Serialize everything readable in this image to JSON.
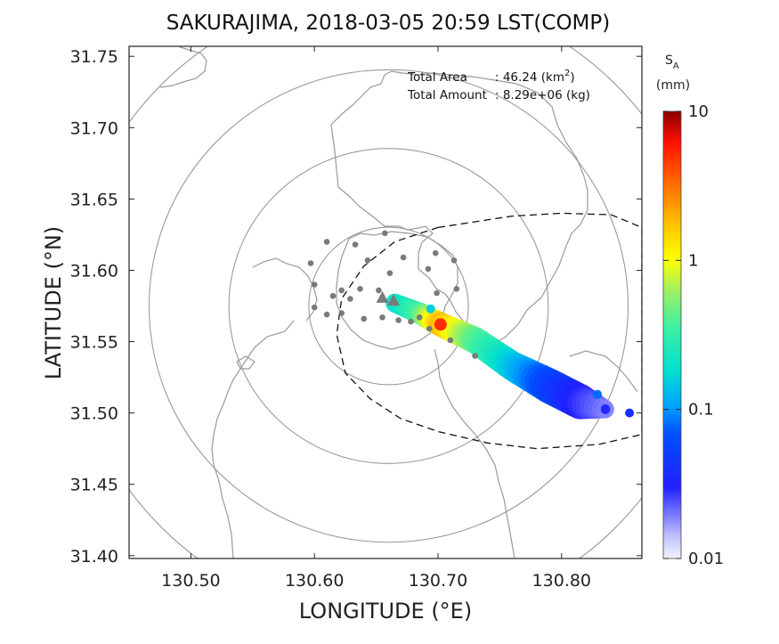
{
  "figure": {
    "title": "SAKURAJIMA, 2018-03-05 20:59 LST(COMP)",
    "xlabel": "LONGITUDE (°E)",
    "ylabel": "LATITUDE (°N)",
    "summary": {
      "area_label": "Total Area",
      "area_value": ": 46.24 (km",
      "area_unit_sup": "2",
      "area_close": ")",
      "amount_label": "Total Amount",
      "amount_value": ": 8.29e+06 (kg)"
    },
    "colorbar": {
      "var": "S",
      "var_sub": "A",
      "unit": "(mm)",
      "scale": "log",
      "range": [
        0.01,
        10
      ],
      "ticks": [
        "10",
        "1",
        "0.1",
        "0.01"
      ],
      "tick_values": [
        10,
        1,
        0.1,
        0.01
      ]
    }
  },
  "chart_data": {
    "type": "heatmap",
    "projection": "lon-lat",
    "xlim": [
      130.45,
      130.865
    ],
    "ylim": [
      31.398,
      31.757
    ],
    "x_ticks": [
      130.5,
      130.6,
      130.7,
      130.8
    ],
    "x_tick_labels": [
      "130.50",
      "130.60",
      "130.70",
      "130.80"
    ],
    "y_ticks": [
      31.4,
      31.45,
      31.5,
      31.55,
      31.6,
      31.65,
      31.7,
      31.75
    ],
    "y_tick_labels": [
      "31.40",
      "31.45",
      "31.50",
      "31.55",
      "31.60",
      "31.65",
      "31.70",
      "31.75"
    ],
    "grid": false,
    "radar_center": [
      130.66,
      31.575
    ],
    "range_rings": [
      {
        "rx": 0.0646,
        "ry": 0.0552
      },
      {
        "rx": 0.1292,
        "ry": 0.1104
      },
      {
        "rx": 0.1938,
        "ry": 0.1656
      },
      {
        "rx": 0.2584,
        "ry": 0.2208
      }
    ],
    "volcano_markers": [
      [
        130.655,
        31.581
      ],
      [
        130.664,
        31.579
      ]
    ],
    "stations": [
      [
        130.61,
        31.62
      ],
      [
        130.633,
        31.618
      ],
      [
        130.657,
        31.626
      ],
      [
        130.672,
        31.609
      ],
      [
        130.692,
        31.601
      ],
      [
        130.698,
        31.612
      ],
      [
        130.713,
        31.607
      ],
      [
        130.597,
        31.605
      ],
      [
        130.643,
        31.607
      ],
      [
        130.661,
        31.598
      ],
      [
        130.6,
        31.59
      ],
      [
        130.622,
        31.586
      ],
      [
        130.637,
        31.587
      ],
      [
        130.652,
        31.586
      ],
      [
        130.615,
        31.582
      ],
      [
        130.629,
        31.58
      ],
      [
        130.6,
        31.574
      ],
      [
        130.61,
        31.569
      ],
      [
        130.622,
        31.57
      ],
      [
        130.64,
        31.566
      ],
      [
        130.655,
        31.567
      ],
      [
        130.668,
        31.565
      ],
      [
        130.678,
        31.564
      ],
      [
        130.685,
        31.567
      ],
      [
        130.693,
        31.559
      ],
      [
        130.71,
        31.551
      ],
      [
        130.73,
        31.54
      ],
      [
        130.715,
        31.587
      ],
      [
        130.699,
        31.584
      ]
    ],
    "dashed_contour": [
      [
        130.7,
        31.63
      ],
      [
        130.76,
        31.638
      ],
      [
        130.8,
        31.64
      ],
      [
        130.84,
        31.639
      ],
      [
        130.865,
        31.63
      ],
      [
        130.865,
        31.485
      ],
      [
        130.83,
        31.478
      ],
      [
        130.78,
        31.475
      ],
      [
        130.74,
        31.479
      ],
      [
        130.7,
        31.487
      ],
      [
        130.67,
        31.496
      ],
      [
        130.645,
        31.51
      ],
      [
        130.625,
        31.528
      ],
      [
        130.618,
        31.555
      ],
      [
        130.622,
        31.58
      ],
      [
        130.64,
        31.603
      ],
      [
        130.665,
        31.62
      ],
      [
        130.7,
        31.63
      ]
    ],
    "plume_axis": [
      {
        "lon": 130.665,
        "lat": 31.577,
        "half_width": 0.007,
        "value": 0.3
      },
      {
        "lon": 130.685,
        "lat": 31.57,
        "half_width": 0.008,
        "value": 0.6
      },
      {
        "lon": 130.702,
        "lat": 31.562,
        "half_width": 0.009,
        "value": 3.0
      },
      {
        "lon": 130.73,
        "lat": 31.551,
        "half_width": 0.01,
        "value": 0.7
      },
      {
        "lon": 130.76,
        "lat": 31.533,
        "half_width": 0.011,
        "value": 0.25
      },
      {
        "lon": 130.79,
        "lat": 31.519,
        "half_width": 0.013,
        "value": 0.1
      },
      {
        "lon": 130.815,
        "lat": 31.508,
        "half_width": 0.013,
        "value": 0.05
      },
      {
        "lon": 130.838,
        "lat": 31.502,
        "half_width": 0.006,
        "value": 0.03
      }
    ],
    "plume_spots": [
      {
        "lon": 130.702,
        "lat": 31.562,
        "value": 5.0
      },
      {
        "lon": 130.694,
        "lat": 31.573,
        "value": 0.15
      },
      {
        "lon": 130.829,
        "lat": 31.513,
        "value": 0.08
      },
      {
        "lon": 130.855,
        "lat": 31.5,
        "value": 0.04
      }
    ]
  }
}
